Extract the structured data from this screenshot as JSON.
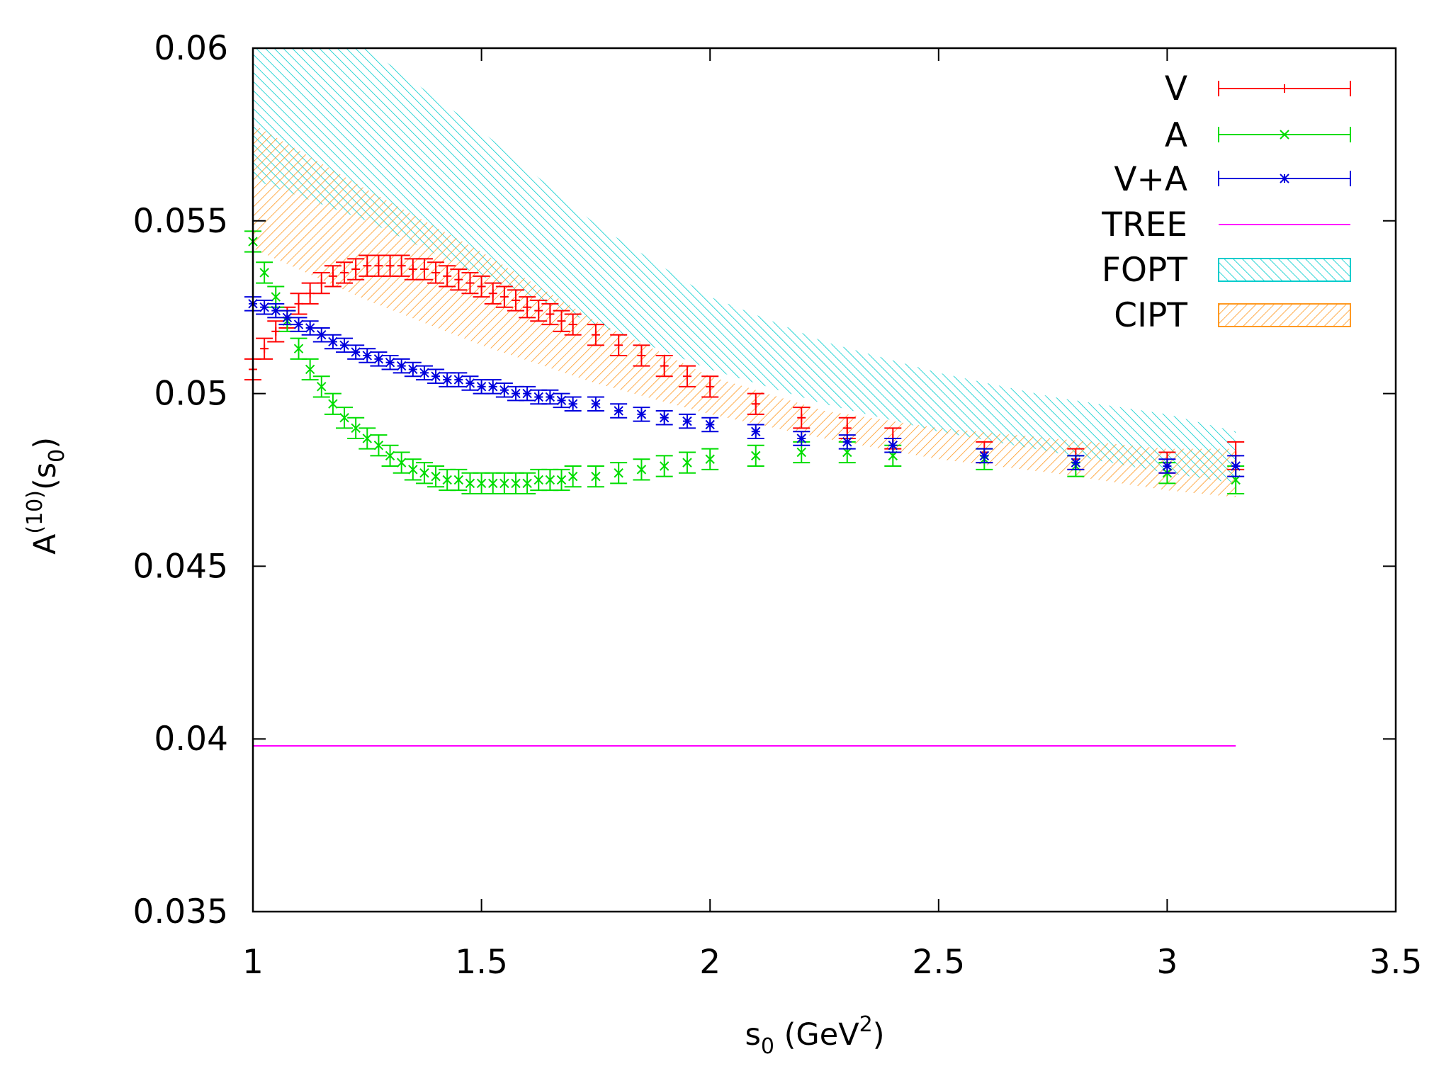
{
  "chart_data": {
    "type": "scatter",
    "title": "",
    "xlabel": {
      "base": "s",
      "sub": "0",
      "rest": " (GeV",
      "sup": "2",
      "close": ")"
    },
    "ylabel": {
      "base": "A",
      "sup": "(10)",
      "rest": "(s",
      "sub": "0",
      "close": ")"
    },
    "xlim": [
      1,
      3.5
    ],
    "ylim": [
      0.035,
      0.06
    ],
    "x_ticks": [
      1,
      1.5,
      2,
      2.5,
      3,
      3.5
    ],
    "x_tick_labels": [
      "1",
      "1.5",
      "2",
      "2.5",
      "3",
      "3.5"
    ],
    "y_ticks": [
      0.035,
      0.04,
      0.045,
      0.05,
      0.055,
      0.06
    ],
    "y_tick_labels": [
      "0.035",
      "0.04",
      "0.045",
      "0.05",
      "0.055",
      "0.06"
    ],
    "grid": false,
    "legend_position": "top-right",
    "x": [
      1.0,
      1.025,
      1.05,
      1.075,
      1.1,
      1.125,
      1.15,
      1.175,
      1.2,
      1.225,
      1.25,
      1.275,
      1.3,
      1.325,
      1.35,
      1.375,
      1.4,
      1.425,
      1.45,
      1.475,
      1.5,
      1.525,
      1.55,
      1.575,
      1.6,
      1.625,
      1.65,
      1.675,
      1.7,
      1.75,
      1.8,
      1.85,
      1.9,
      1.95,
      2.0,
      2.1,
      2.2,
      2.3,
      2.4,
      2.6,
      2.8,
      3.0,
      3.15
    ],
    "series": [
      {
        "name": "V",
        "color": "#ff0000",
        "marker": "plus",
        "values": [
          0.0507,
          0.0513,
          0.0518,
          0.0522,
          0.0526,
          0.0529,
          0.0532,
          0.0534,
          0.0535,
          0.0536,
          0.0537,
          0.0537,
          0.0537,
          0.0537,
          0.0536,
          0.0536,
          0.0535,
          0.0534,
          0.0533,
          0.0532,
          0.0531,
          0.0529,
          0.0528,
          0.0527,
          0.0525,
          0.0524,
          0.0523,
          0.0521,
          0.052,
          0.0517,
          0.0514,
          0.0511,
          0.0508,
          0.0505,
          0.0502,
          0.0497,
          0.0493,
          0.049,
          0.0487,
          0.0483,
          0.0481,
          0.048,
          0.0482
        ],
        "errors": [
          0.0003,
          0.0003,
          0.0003,
          0.0003,
          0.0003,
          0.0003,
          0.0003,
          0.0003,
          0.0003,
          0.0003,
          0.0003,
          0.0003,
          0.0003,
          0.0003,
          0.0003,
          0.0003,
          0.0003,
          0.0003,
          0.0003,
          0.0003,
          0.0003,
          0.0003,
          0.0003,
          0.0003,
          0.0003,
          0.0003,
          0.0003,
          0.0003,
          0.0003,
          0.0003,
          0.0003,
          0.0003,
          0.0003,
          0.0003,
          0.0003,
          0.0003,
          0.0003,
          0.0003,
          0.0003,
          0.0003,
          0.0003,
          0.0003,
          0.0004
        ]
      },
      {
        "name": "A",
        "color": "#00dd00",
        "marker": "x",
        "values": [
          0.0544,
          0.0535,
          0.0528,
          0.0521,
          0.0513,
          0.0507,
          0.0502,
          0.0497,
          0.0493,
          0.049,
          0.0487,
          0.0485,
          0.0482,
          0.048,
          0.0478,
          0.0477,
          0.0476,
          0.0475,
          0.0475,
          0.0474,
          0.0474,
          0.0474,
          0.0474,
          0.0474,
          0.0474,
          0.0475,
          0.0475,
          0.0475,
          0.0476,
          0.0476,
          0.0477,
          0.0478,
          0.0479,
          0.048,
          0.0481,
          0.0482,
          0.0483,
          0.0483,
          0.0482,
          0.0481,
          0.0479,
          0.0477,
          0.0475
        ],
        "errors": [
          0.0003,
          0.0003,
          0.0003,
          0.0003,
          0.0003,
          0.0003,
          0.0003,
          0.0003,
          0.0003,
          0.0003,
          0.0003,
          0.0003,
          0.0003,
          0.0003,
          0.0003,
          0.0003,
          0.0003,
          0.0003,
          0.0003,
          0.0003,
          0.0003,
          0.0003,
          0.0003,
          0.0003,
          0.0003,
          0.0003,
          0.0003,
          0.0003,
          0.0003,
          0.0003,
          0.0003,
          0.0003,
          0.0003,
          0.0003,
          0.0003,
          0.0003,
          0.0003,
          0.0003,
          0.0003,
          0.0003,
          0.0003,
          0.0003,
          0.0004
        ]
      },
      {
        "name": "V+A",
        "color": "#0000dd",
        "marker": "star",
        "values": [
          0.0526,
          0.0525,
          0.0524,
          0.0522,
          0.052,
          0.0519,
          0.0517,
          0.0515,
          0.0514,
          0.0512,
          0.0511,
          0.051,
          0.0509,
          0.0508,
          0.0507,
          0.0506,
          0.0505,
          0.0504,
          0.0504,
          0.0503,
          0.0502,
          0.0502,
          0.0501,
          0.05,
          0.05,
          0.0499,
          0.0499,
          0.0498,
          0.0497,
          0.0497,
          0.0495,
          0.0494,
          0.0493,
          0.0492,
          0.0491,
          0.0489,
          0.0487,
          0.0486,
          0.0485,
          0.0482,
          0.048,
          0.0479,
          0.0479
        ],
        "errors": [
          0.0002,
          0.0002,
          0.0002,
          0.0002,
          0.0002,
          0.0002,
          0.0002,
          0.0002,
          0.0002,
          0.0002,
          0.0002,
          0.0002,
          0.0002,
          0.0002,
          0.0002,
          0.0002,
          0.0002,
          0.0002,
          0.0002,
          0.0002,
          0.0002,
          0.0002,
          0.0002,
          0.0002,
          0.0002,
          0.0002,
          0.0002,
          0.0002,
          0.0002,
          0.0002,
          0.0002,
          0.0002,
          0.0002,
          0.0002,
          0.0002,
          0.0002,
          0.0002,
          0.0002,
          0.0002,
          0.0002,
          0.0002,
          0.0002,
          0.0003
        ]
      }
    ],
    "lines": [
      {
        "name": "TREE",
        "color": "#ff00ff",
        "x": [
          1.0,
          3.15
        ],
        "y": [
          0.0398,
          0.0398
        ]
      }
    ],
    "bands": [
      {
        "name": "FOPT",
        "color": "#00cccc",
        "pattern": "hatch-down",
        "x": [
          1.0,
          1.25,
          1.5,
          1.75,
          2.0,
          2.25,
          2.5,
          2.75,
          3.0,
          3.15
        ],
        "upper": [
          0.06,
          0.06,
          0.0576,
          0.0549,
          0.0528,
          0.0515,
          0.0506,
          0.0499,
          0.0494,
          0.0489
        ],
        "lower": [
          0.0562,
          0.055,
          0.0534,
          0.052,
          0.0507,
          0.0497,
          0.0489,
          0.0483,
          0.0477,
          0.0474
        ]
      },
      {
        "name": "CIPT",
        "color": "#ff9922",
        "pattern": "hatch-up",
        "x": [
          1.0,
          1.25,
          1.5,
          1.75,
          2.0,
          2.25,
          2.5,
          2.75,
          3.0,
          3.15
        ],
        "upper": [
          0.0578,
          0.0559,
          0.0541,
          0.0521,
          0.0505,
          0.0495,
          0.049,
          0.0487,
          0.0484,
          0.0484
        ],
        "lower": [
          0.0542,
          0.0527,
          0.0514,
          0.0503,
          0.0494,
          0.0487,
          0.0481,
          0.0477,
          0.0472,
          0.047
        ]
      }
    ]
  }
}
